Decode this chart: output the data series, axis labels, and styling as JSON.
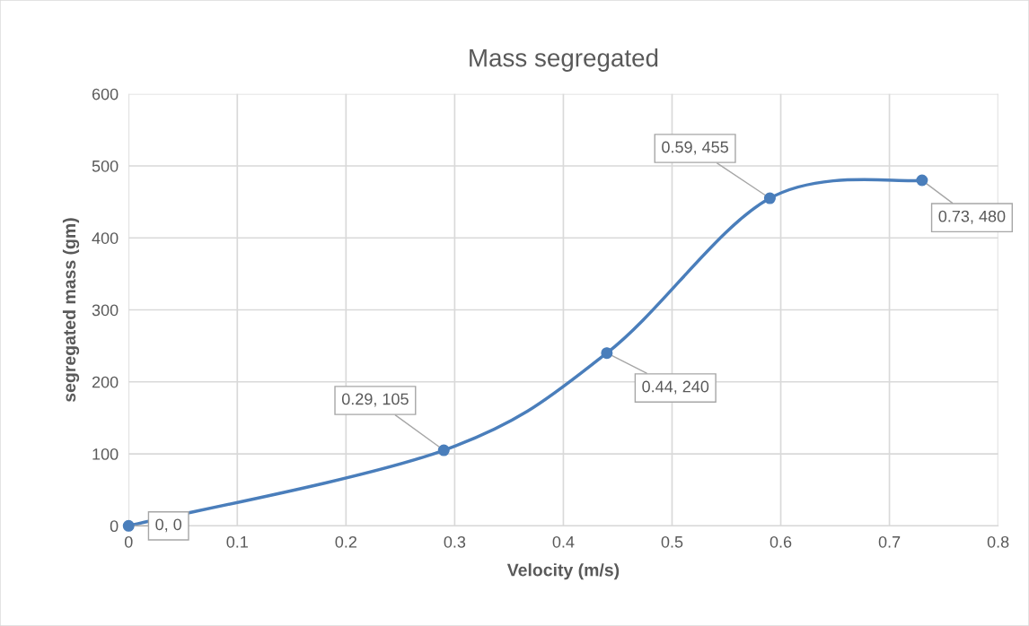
{
  "chart_data": {
    "type": "line",
    "title": "Mass segregated",
    "xlabel": "Velocity (m/s)",
    "ylabel": "segregated mass (gm)",
    "x": [
      0,
      0.29,
      0.44,
      0.59,
      0.73
    ],
    "series": [
      {
        "color": "#4a7ebb",
        "values": [
          0,
          105,
          240,
          455,
          480
        ],
        "value_labels": [
          "0, 0",
          "0.29, 105",
          "0.44, 240",
          "0.59, 455",
          "0.73, 480"
        ]
      }
    ],
    "xlim": [
      0,
      0.8
    ],
    "xticks": [
      0,
      0.1,
      0.2,
      0.3,
      0.4,
      0.5,
      0.6,
      0.7,
      0.8
    ],
    "ylim": [
      0,
      600
    ],
    "yticks": [
      0,
      100,
      200,
      300,
      400,
      500,
      600
    ],
    "grid": true,
    "marker": "circle",
    "line_style": "solid"
  }
}
